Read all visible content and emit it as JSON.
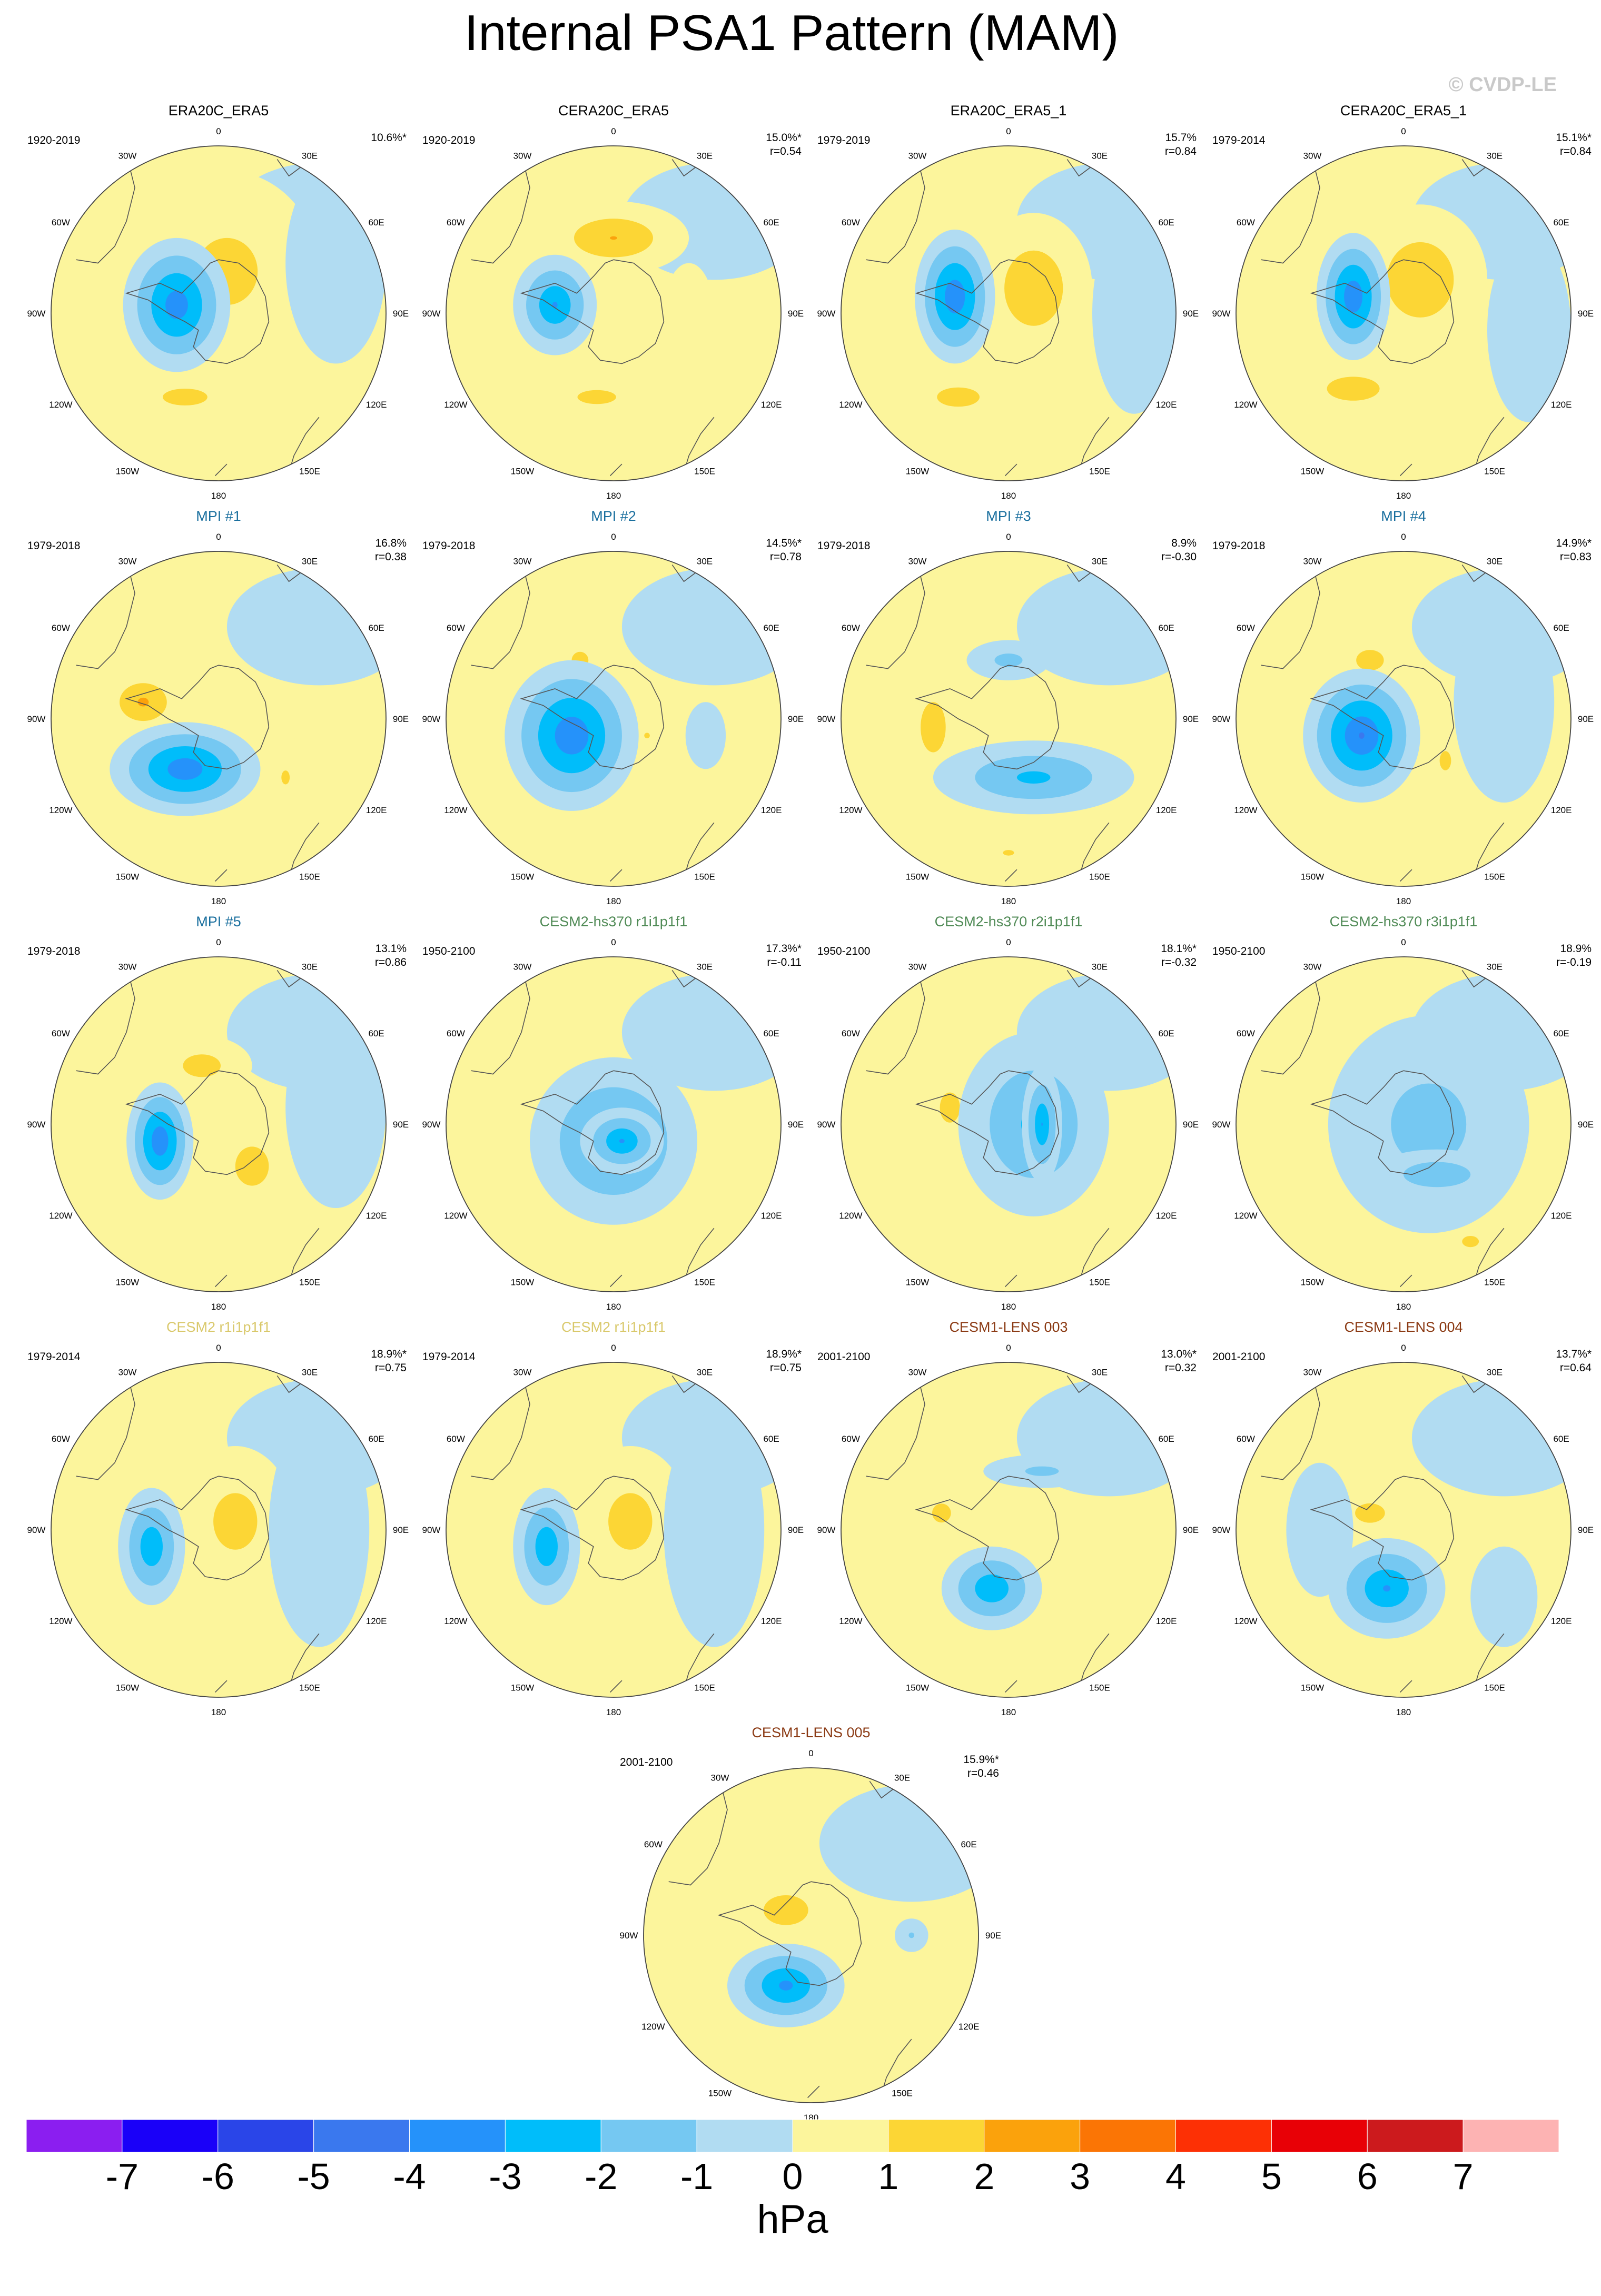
{
  "title": "Internal PSA1 Pattern (MAM)",
  "watermark": "© CVDP-LE",
  "lon_labels": [
    "0",
    "30E",
    "60E",
    "90E",
    "120E",
    "150E",
    "180",
    "150W",
    "120W",
    "90W",
    "60W",
    "30W"
  ],
  "colors": {
    "ERA": "#000000",
    "MPI": "#1a6f9e",
    "CESM2-hs370": "#4f8a55",
    "CESM2": "#d9c86a",
    "CESM1-LENS": "#8b3a14",
    "coastline": "#555555",
    "map_edge": "#444444"
  },
  "panels": [
    {
      "title": "ERA20C_ERA5",
      "group": "ERA",
      "period": "1920-2019",
      "pct": "10.6%*",
      "r": "",
      "pattern": {
        "pos": [
          [
            0.05,
            -0.25,
            0.55,
            0.6,
            1.5
          ],
          [
            -0.2,
            0.5,
            0.8,
            0.3,
            1.2
          ]
        ],
        "neg": [
          [
            -0.25,
            -0.05,
            0.32,
            0.4,
            -3.8
          ],
          [
            0.7,
            -0.3,
            0.3,
            0.6,
            -0.9
          ]
        ]
      }
    },
    {
      "title": "CERA20C_ERA5",
      "group": "ERA",
      "period": "1920-2019",
      "pct": "15.0%*",
      "r": "r=0.54",
      "pattern": {
        "pos": [
          [
            0.0,
            -0.45,
            0.45,
            0.22,
            2.1
          ],
          [
            -0.1,
            0.5,
            0.5,
            0.18,
            1.3
          ],
          [
            0.45,
            0.0,
            0.15,
            0.3,
            1.0
          ]
        ],
        "neg": [
          [
            -0.35,
            -0.05,
            0.25,
            0.3,
            -3.2
          ]
        ]
      }
    },
    {
      "title": "ERA20C_ERA5_1",
      "group": "ERA",
      "period": "1979-2019",
      "pct": "15.7%",
      "r": "r=0.84",
      "pattern": {
        "pos": [
          [
            0.15,
            -0.15,
            0.35,
            0.45,
            2.0
          ],
          [
            -0.3,
            0.5,
            0.55,
            0.25,
            1.3
          ]
        ],
        "neg": [
          [
            -0.32,
            -0.1,
            0.24,
            0.4,
            -4.0
          ],
          [
            0.75,
            0.0,
            0.25,
            0.6,
            -0.9
          ]
        ]
      }
    },
    {
      "title": "CERA20C_ERA5_1",
      "group": "ERA",
      "period": "1979-2014",
      "pct": "15.1%*",
      "r": "r=0.84",
      "pattern": {
        "pos": [
          [
            0.1,
            -0.2,
            0.4,
            0.45,
            2.0
          ],
          [
            -0.3,
            0.45,
            0.55,
            0.25,
            1.4
          ]
        ],
        "neg": [
          [
            -0.3,
            -0.1,
            0.22,
            0.38,
            -4.0
          ],
          [
            0.75,
            0.1,
            0.25,
            0.55,
            -0.8
          ]
        ]
      }
    },
    {
      "title": "MPI #1",
      "group": "MPI",
      "period": "1979-2018",
      "pct": "16.8%",
      "r": "r=0.38",
      "pattern": {
        "pos": [
          [
            -0.45,
            -0.1,
            0.25,
            0.2,
            2.3
          ],
          [
            0.4,
            0.35,
            0.15,
            0.25,
            1.2
          ]
        ],
        "neg": [
          [
            -0.2,
            0.3,
            0.45,
            0.28,
            -3.9
          ]
        ]
      }
    },
    {
      "title": "MPI #2",
      "group": "MPI",
      "period": "1979-2018",
      "pct": "14.5%*",
      "r": "r=0.78",
      "pattern": {
        "pos": [
          [
            -0.2,
            -0.35,
            0.15,
            0.15,
            1.5
          ],
          [
            0.2,
            0.1,
            0.1,
            0.1,
            1.2
          ]
        ],
        "neg": [
          [
            -0.25,
            0.1,
            0.4,
            0.45,
            -4.0
          ],
          [
            0.55,
            0.1,
            0.12,
            0.2,
            -0.8
          ]
        ]
      }
    },
    {
      "title": "MPI #3",
      "group": "MPI",
      "period": "1979-2018",
      "pct": "8.9%",
      "r": "r=-0.30",
      "pattern": {
        "pos": [
          [
            -0.45,
            0.05,
            0.15,
            0.3,
            2.0
          ],
          [
            0.0,
            0.8,
            0.2,
            0.1,
            1.2
          ]
        ],
        "neg": [
          [
            0.15,
            0.35,
            0.6,
            0.22,
            -2.4
          ],
          [
            0.0,
            -0.35,
            0.25,
            0.12,
            -1.5
          ]
        ]
      }
    },
    {
      "title": "MPI #4",
      "group": "MPI",
      "period": "1979-2018",
      "pct": "14.9%*",
      "r": "r=0.83",
      "pattern": {
        "pos": [
          [
            -0.2,
            -0.35,
            0.2,
            0.15,
            1.7
          ],
          [
            0.25,
            0.25,
            0.12,
            0.2,
            1.4
          ]
        ],
        "neg": [
          [
            -0.25,
            0.1,
            0.35,
            0.4,
            -4.2
          ],
          [
            0.6,
            -0.1,
            0.3,
            0.6,
            -0.8
          ]
        ]
      }
    },
    {
      "title": "MPI #5",
      "group": "MPI",
      "period": "1979-2018",
      "pct": "13.1%",
      "r": "r=0.86",
      "pattern": {
        "pos": [
          [
            -0.1,
            -0.35,
            0.3,
            0.18,
            1.6
          ],
          [
            0.2,
            0.25,
            0.3,
            0.35,
            1.5
          ]
        ],
        "neg": [
          [
            -0.35,
            0.1,
            0.2,
            0.35,
            -4.0
          ],
          [
            0.7,
            -0.1,
            0.3,
            0.6,
            -0.8
          ]
        ]
      }
    },
    {
      "title": "CESM2-hs370 r1i1p1f1",
      "group": "CESM2-hs370",
      "period": "1950-2100",
      "pct": "17.3%*",
      "r": "r=-0.11",
      "pattern": {
        "pos": [],
        "neg": [
          [
            0.0,
            0.1,
            0.5,
            0.5,
            -2.8
          ],
          [
            0.05,
            0.1,
            0.25,
            0.2,
            -3.2
          ]
        ]
      }
    },
    {
      "title": "CESM2-hs370 r2i1p1f1",
      "group": "CESM2-hs370",
      "period": "1950-2100",
      "pct": "18.1%*",
      "r": "r=-0.32",
      "pattern": {
        "pos": [
          [
            -0.35,
            -0.1,
            0.12,
            0.18,
            2.0
          ]
        ],
        "neg": [
          [
            0.15,
            0.0,
            0.45,
            0.55,
            -2.4
          ],
          [
            0.2,
            0.0,
            0.12,
            0.35,
            -3.1
          ]
        ]
      }
    },
    {
      "title": "CESM2-hs370 r3i1p1f1",
      "group": "CESM2-hs370",
      "period": "1950-2100",
      "pct": "18.9%",
      "r": "r=-0.19",
      "pattern": {
        "pos": [
          [
            -0.3,
            -0.05,
            0.2,
            0.22,
            2.5
          ],
          [
            0.4,
            0.7,
            0.15,
            0.1,
            1.5
          ]
        ],
        "neg": [
          [
            0.15,
            0.0,
            0.6,
            0.65,
            -1.6
          ],
          [
            0.2,
            0.3,
            0.4,
            0.15,
            -2.0
          ]
        ]
      }
    },
    {
      "title": "CESM2 r1i1p1f1",
      "group": "CESM2",
      "period": "1979-2014",
      "pct": "18.9%*",
      "r": "r=0.75",
      "pattern": {
        "pos": [
          [
            0.1,
            -0.05,
            0.35,
            0.45,
            1.6
          ]
        ],
        "neg": [
          [
            -0.4,
            0.1,
            0.2,
            0.35,
            -3.0
          ],
          [
            0.6,
            0.0,
            0.3,
            0.7,
            -0.8
          ]
        ]
      }
    },
    {
      "title": "CESM2 r1i1p1f1",
      "group": "CESM2",
      "period": "1979-2014",
      "pct": "18.9%*",
      "r": "r=0.75",
      "pattern": {
        "pos": [
          [
            0.1,
            -0.05,
            0.35,
            0.45,
            1.6
          ]
        ],
        "neg": [
          [
            -0.4,
            0.1,
            0.2,
            0.35,
            -3.0
          ],
          [
            0.6,
            0.0,
            0.3,
            0.7,
            -0.8
          ]
        ]
      }
    },
    {
      "title": "CESM1-LENS 003",
      "group": "CESM1-LENS",
      "period": "2001-2100",
      "pct": "13.0%*",
      "r": "r=0.32",
      "pattern": {
        "pos": [
          [
            -0.4,
            -0.1,
            0.15,
            0.15,
            1.6
          ]
        ],
        "neg": [
          [
            -0.1,
            0.35,
            0.3,
            0.25,
            -3.0
          ],
          [
            0.2,
            -0.35,
            0.35,
            0.1,
            -1.4
          ]
        ]
      }
    },
    {
      "title": "CESM1-LENS 004",
      "group": "CESM1-LENS",
      "period": "2001-2100",
      "pct": "13.7%*",
      "r": "r=0.64",
      "pattern": {
        "pos": [
          [
            -0.2,
            -0.1,
            0.2,
            0.13,
            1.8
          ]
        ],
        "neg": [
          [
            -0.1,
            0.35,
            0.35,
            0.3,
            -3.2
          ],
          [
            -0.5,
            0.0,
            0.2,
            0.4,
            -0.8
          ],
          [
            0.6,
            0.4,
            0.2,
            0.3,
            -0.8
          ]
        ]
      }
    },
    {
      "title": "CESM1-LENS 005",
      "group": "CESM1-LENS",
      "period": "2001-2100",
      "pct": "15.9%*",
      "r": "r=0.46",
      "pattern": {
        "pos": [
          [
            -0.15,
            -0.15,
            0.3,
            0.2,
            1.8
          ]
        ],
        "neg": [
          [
            -0.15,
            0.3,
            0.35,
            0.25,
            -3.4
          ],
          [
            0.6,
            0.0,
            0.1,
            0.1,
            -1.2
          ]
        ]
      }
    }
  ],
  "colorbar": {
    "labels": [
      "-7",
      "-6",
      "-5",
      "-4",
      "-3",
      "-2",
      "-1",
      "0",
      "1",
      "2",
      "3",
      "4",
      "5",
      "6",
      "7"
    ],
    "colors": [
      "#8b1ef0",
      "#1a00f8",
      "#2a45e8",
      "#3a78ee",
      "#2592fa",
      "#00bdfa",
      "#75c8f2",
      "#b1dcf2",
      "#fcf59c",
      "#fcd635",
      "#fba20c",
      "#fb7505",
      "#fd3005",
      "#e80006",
      "#cc1a1d",
      "#fdb3b3"
    ],
    "units": "hPa"
  }
}
